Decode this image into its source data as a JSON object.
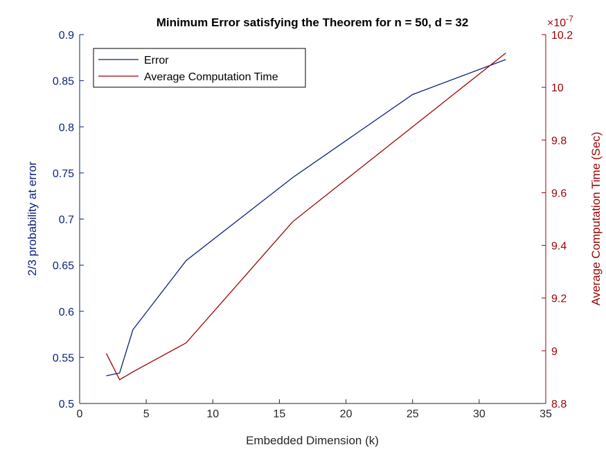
{
  "chart_data": {
    "type": "line",
    "title": "Minimum Error satisfying the Theorem for n = 50, d = 32",
    "xlabel": "Embedded Dimension (k)",
    "ylabel_left": "2/3 probability at error",
    "ylabel_right": "Average Computation Time (Sec)",
    "xlim": [
      0,
      35
    ],
    "ylim_left": [
      0.5,
      0.9
    ],
    "ylim_right": [
      8.8e-07,
      1.02e-06
    ],
    "right_axis_exponent": "×10",
    "right_axis_exponent_power": "-7",
    "x_ticks": [
      "0",
      "5",
      "10",
      "15",
      "20",
      "25",
      "30",
      "35"
    ],
    "y_ticks_left": [
      "0.5",
      "0.55",
      "0.6",
      "0.65",
      "0.7",
      "0.75",
      "0.8",
      "0.85",
      "0.9"
    ],
    "y_ticks_right": [
      "8.8",
      "9",
      "9.2",
      "9.4",
      "9.6",
      "9.8",
      "10",
      "10.2"
    ],
    "legend_position": "top-left",
    "grid": false,
    "series": [
      {
        "name": "Error",
        "axis": "left",
        "color": "#0a1f7a",
        "x": [
          2,
          3,
          4,
          8,
          16,
          25,
          32
        ],
        "y": [
          0.53,
          0.533,
          0.58,
          0.655,
          0.745,
          0.835,
          0.873
        ]
      },
      {
        "name": "Average Computation Time",
        "axis": "right",
        "color": "#9b0000",
        "x": [
          2,
          3,
          4,
          8,
          16,
          25,
          32
        ],
        "y": [
          8.99e-07,
          8.89e-07,
          8.92e-07,
          9.03e-07,
          9.49e-07,
          9.85e-07,
          1.013e-06
        ]
      }
    ]
  }
}
